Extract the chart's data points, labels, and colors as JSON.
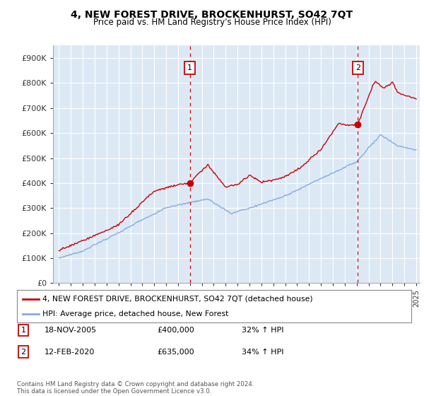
{
  "title": "4, NEW FOREST DRIVE, BROCKENHURST, SO42 7QT",
  "subtitle": "Price paid vs. HM Land Registry's House Price Index (HPI)",
  "fig_bg_color": "#ffffff",
  "plot_bg_color": "#dce9f5",
  "grid_color": "#ffffff",
  "red_line_color": "#cc0000",
  "blue_line_color": "#88aadd",
  "ylim": [
    0,
    950000
  ],
  "yticks": [
    0,
    100000,
    200000,
    300000,
    400000,
    500000,
    600000,
    700000,
    800000,
    900000
  ],
  "ytick_labels": [
    "£0",
    "£100K",
    "£200K",
    "£300K",
    "£400K",
    "£500K",
    "£600K",
    "£700K",
    "£800K",
    "£900K"
  ],
  "xstart": 1995,
  "xend": 2025,
  "sale1_date": 2006.0,
  "sale1_price": 400000,
  "sale1_label": "1",
  "sale1_text": "18-NOV-2005",
  "sale1_amount": "£400,000",
  "sale1_hpi": "32% ↑ HPI",
  "sale2_date": 2020.1,
  "sale2_price": 635000,
  "sale2_label": "2",
  "sale2_text": "12-FEB-2020",
  "sale2_amount": "£635,000",
  "sale2_hpi": "34% ↑ HPI",
  "legend_label_red": "4, NEW FOREST DRIVE, BROCKENHURST, SO42 7QT (detached house)",
  "legend_label_blue": "HPI: Average price, detached house, New Forest",
  "footer": "Contains HM Land Registry data © Crown copyright and database right 2024.\nThis data is licensed under the Open Government Licence v3.0."
}
